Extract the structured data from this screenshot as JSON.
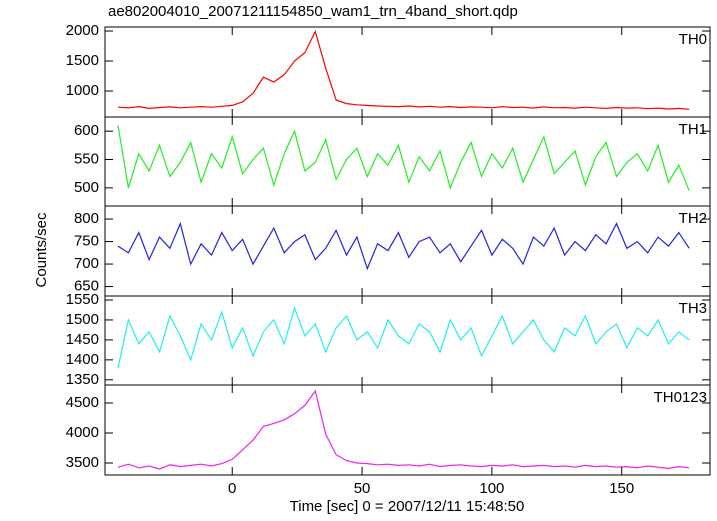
{
  "chart_data": [
    {
      "type": "line",
      "title": "ae802004010_20071211154850_wam1_trn_4band_short.qdp",
      "label": "TH0",
      "x": [
        -44,
        -40,
        -36,
        -32,
        -28,
        -24,
        -20,
        -16,
        -12,
        -8,
        -4,
        0,
        4,
        8,
        12,
        16,
        20,
        24,
        28,
        32,
        36,
        40,
        44,
        48,
        52,
        56,
        60,
        64,
        68,
        72,
        76,
        80,
        84,
        88,
        92,
        96,
        100,
        104,
        108,
        112,
        116,
        120,
        124,
        128,
        132,
        136,
        140,
        144,
        148,
        152,
        156,
        160,
        164,
        168,
        172,
        176
      ],
      "values": [
        730,
        720,
        740,
        710,
        725,
        735,
        720,
        730,
        740,
        730,
        745,
        760,
        820,
        960,
        1230,
        1150,
        1270,
        1500,
        1640,
        1990,
        1380,
        850,
        790,
        770,
        760,
        750,
        745,
        740,
        750,
        735,
        745,
        730,
        740,
        725,
        735,
        730,
        720,
        740,
        725,
        730,
        715,
        735,
        720,
        725,
        715,
        730,
        720,
        710,
        725,
        715,
        720,
        705,
        715,
        700,
        710,
        695
      ],
      "color": "#ff0000",
      "xlim": [
        -49,
        184
      ],
      "ylim": [
        567,
        2067
      ],
      "yticks": [
        1000,
        1500,
        2000
      ]
    },
    {
      "type": "line",
      "label": "TH1",
      "x": [
        -44,
        -40,
        -36,
        -32,
        -28,
        -24,
        -20,
        -16,
        -12,
        -8,
        -4,
        0,
        4,
        8,
        12,
        16,
        20,
        24,
        28,
        32,
        36,
        40,
        44,
        48,
        52,
        56,
        60,
        64,
        68,
        72,
        76,
        80,
        84,
        88,
        92,
        96,
        100,
        104,
        108,
        112,
        116,
        120,
        124,
        128,
        132,
        136,
        140,
        144,
        148,
        152,
        156,
        160,
        164,
        168,
        172,
        176
      ],
      "values": [
        610,
        500,
        560,
        530,
        575,
        520,
        545,
        580,
        510,
        560,
        535,
        590,
        525,
        550,
        570,
        505,
        560,
        600,
        530,
        545,
        585,
        515,
        550,
        570,
        520,
        560,
        540,
        575,
        510,
        555,
        530,
        565,
        500,
        545,
        580,
        520,
        560,
        535,
        570,
        510,
        550,
        590,
        525,
        545,
        565,
        505,
        555,
        580,
        520,
        545,
        560,
        530,
        575,
        510,
        540,
        495
      ],
      "color": "#22ee22",
      "xlim": [
        -49,
        184
      ],
      "ylim": [
        468,
        625
      ],
      "yticks": [
        500,
        550,
        600
      ]
    },
    {
      "type": "line",
      "label": "TH2",
      "y_label": "Counts/sec",
      "x": [
        -44,
        -40,
        -36,
        -32,
        -28,
        -24,
        -20,
        -16,
        -12,
        -8,
        -4,
        0,
        4,
        8,
        12,
        16,
        20,
        24,
        28,
        32,
        36,
        40,
        44,
        48,
        52,
        56,
        60,
        64,
        68,
        72,
        76,
        80,
        84,
        88,
        92,
        96,
        100,
        104,
        108,
        112,
        116,
        120,
        124,
        128,
        132,
        136,
        140,
        144,
        148,
        152,
        156,
        160,
        164,
        168,
        172,
        176
      ],
      "values": [
        740,
        725,
        770,
        710,
        760,
        735,
        790,
        700,
        745,
        720,
        770,
        730,
        755,
        700,
        740,
        780,
        725,
        750,
        765,
        710,
        735,
        775,
        720,
        760,
        690,
        745,
        730,
        770,
        715,
        750,
        760,
        725,
        745,
        705,
        740,
        775,
        720,
        755,
        735,
        700,
        760,
        740,
        780,
        720,
        750,
        730,
        765,
        745,
        790,
        735,
        750,
        725,
        760,
        740,
        770,
        735
      ],
      "color": "#2222dd",
      "xlim": [
        -49,
        184
      ],
      "ylim": [
        629,
        829
      ],
      "yticks": [
        650,
        700,
        750,
        800
      ]
    },
    {
      "type": "line",
      "label": "TH3",
      "x": [
        -44,
        -40,
        -36,
        -32,
        -28,
        -24,
        -20,
        -16,
        -12,
        -8,
        -4,
        0,
        4,
        8,
        12,
        16,
        20,
        24,
        28,
        32,
        36,
        40,
        44,
        48,
        52,
        56,
        60,
        64,
        68,
        72,
        76,
        80,
        84,
        88,
        92,
        96,
        100,
        104,
        108,
        112,
        116,
        120,
        124,
        128,
        132,
        136,
        140,
        144,
        148,
        152,
        156,
        160,
        164,
        168,
        172,
        176
      ],
      "values": [
        1380,
        1500,
        1440,
        1470,
        1420,
        1510,
        1460,
        1400,
        1490,
        1450,
        1520,
        1430,
        1480,
        1410,
        1470,
        1500,
        1440,
        1530,
        1460,
        1490,
        1420,
        1480,
        1510,
        1450,
        1470,
        1430,
        1500,
        1460,
        1440,
        1490,
        1470,
        1420,
        1500,
        1450,
        1480,
        1410,
        1460,
        1510,
        1440,
        1470,
        1500,
        1450,
        1420,
        1480,
        1460,
        1510,
        1440,
        1470,
        1490,
        1430,
        1480,
        1460,
        1500,
        1440,
        1470,
        1450
      ],
      "color": "#22eeee",
      "xlim": [
        -49,
        184
      ],
      "ylim": [
        1337,
        1560
      ],
      "yticks": [
        1350,
        1400,
        1450,
        1500,
        1550
      ]
    },
    {
      "type": "line",
      "label": "TH0123",
      "x_label": "Time [sec] 0 = 2007/12/11 15:48:50",
      "x": [
        -44,
        -40,
        -36,
        -32,
        -28,
        -24,
        -20,
        -16,
        -12,
        -8,
        -4,
        0,
        4,
        8,
        12,
        16,
        20,
        24,
        28,
        32,
        36,
        40,
        44,
        48,
        52,
        56,
        60,
        64,
        68,
        72,
        76,
        80,
        84,
        88,
        92,
        96,
        100,
        104,
        108,
        112,
        116,
        120,
        124,
        128,
        132,
        136,
        140,
        144,
        148,
        152,
        156,
        160,
        164,
        168,
        172,
        176
      ],
      "values": [
        3430,
        3480,
        3420,
        3450,
        3400,
        3470,
        3440,
        3460,
        3480,
        3450,
        3490,
        3560,
        3720,
        3880,
        4110,
        4160,
        4220,
        4320,
        4460,
        4700,
        3980,
        3640,
        3540,
        3500,
        3490,
        3470,
        3480,
        3460,
        3470,
        3450,
        3480,
        3440,
        3460,
        3470,
        3450,
        3440,
        3460,
        3450,
        3470,
        3440,
        3450,
        3460,
        3440,
        3450,
        3430,
        3460,
        3440,
        3450,
        3430,
        3440,
        3420,
        3450,
        3430,
        3410,
        3440,
        3420
      ],
      "color": "#ee22ee",
      "xlim": [
        -49,
        184
      ],
      "ylim": [
        3300,
        4800
      ],
      "yticks": [
        3500,
        4000,
        4500
      ],
      "xticks": [
        0,
        50,
        100,
        150
      ]
    }
  ]
}
